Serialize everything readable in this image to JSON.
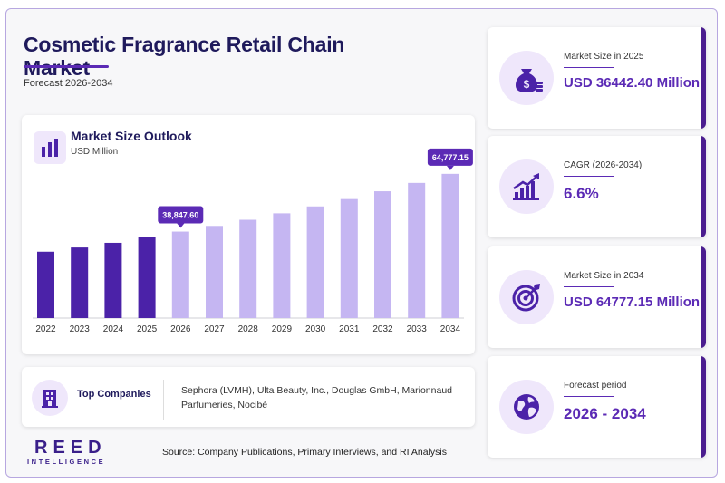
{
  "header": {
    "title": "Cosmetic Fragrance Retail Chain Market",
    "subtitle": "Forecast 2026-2034"
  },
  "chart_panel": {
    "title": "Market Size Outlook",
    "unit": "USD Million"
  },
  "chart_data": {
    "type": "bar",
    "categories": [
      "2022",
      "2023",
      "2024",
      "2025",
      "2026",
      "2027",
      "2028",
      "2029",
      "2030",
      "2031",
      "2032",
      "2033",
      "2034"
    ],
    "values": [
      29800,
      31700,
      33800,
      36442.4,
      38847.6,
      41400,
      44150,
      47050,
      50150,
      53450,
      56950,
      60700,
      64777.15
    ],
    "ylim": [
      0,
      70000
    ],
    "highlight_labels": [
      {
        "category": "2026",
        "text": "38,847.60"
      },
      {
        "category": "2034",
        "text": "64,777.15"
      }
    ],
    "colors": {
      "historical": "#4b22a8",
      "forecast": "#c5b6f2",
      "label_bg": "#5b2ab5"
    }
  },
  "companies": {
    "label": "Top Companies",
    "text": "Sephora (LVMH), Ulta Beauty, Inc., Douglas GmbH, Marionnaud Parfumeries, Nocibé"
  },
  "branding": {
    "logo": "REED",
    "logo_sub": "INTELLIGENCE"
  },
  "source": "Source: Company Publications, Primary Interviews, and RI Analysis",
  "stats": [
    {
      "label": "Market Size in 2025",
      "value": "USD 36442.40 Million",
      "icon": "money-bag-icon"
    },
    {
      "label": "CAGR (2026-2034)",
      "value": "6.6%",
      "icon": "growth-chart-icon"
    },
    {
      "label": "Market Size in 2034",
      "value": "USD 64777.15 Million",
      "icon": "target-icon"
    },
    {
      "label": "Forecast period",
      "value": "2026 - 2034",
      "icon": "globe-icon"
    }
  ],
  "theme": {
    "accent": "#5b2ab5",
    "dark": "#1f1a5c",
    "icon_bg": "#efe7fb"
  }
}
